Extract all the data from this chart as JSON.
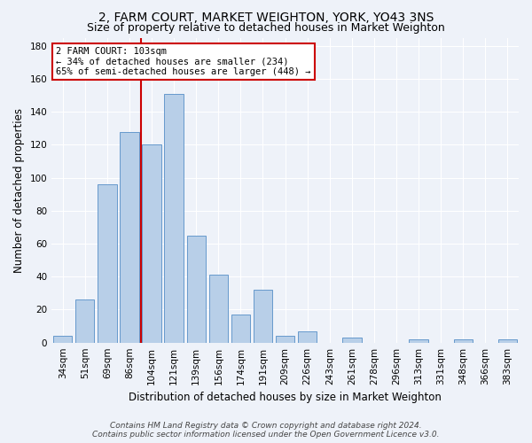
{
  "title_line1": "2, FARM COURT, MARKET WEIGHTON, YORK, YO43 3NS",
  "title_line2": "Size of property relative to detached houses in Market Weighton",
  "xlabel": "Distribution of detached houses by size in Market Weighton",
  "ylabel": "Number of detached properties",
  "categories": [
    "34sqm",
    "51sqm",
    "69sqm",
    "86sqm",
    "104sqm",
    "121sqm",
    "139sqm",
    "156sqm",
    "174sqm",
    "191sqm",
    "209sqm",
    "226sqm",
    "243sqm",
    "261sqm",
    "278sqm",
    "296sqm",
    "313sqm",
    "331sqm",
    "348sqm",
    "366sqm",
    "383sqm"
  ],
  "values": [
    4,
    26,
    96,
    128,
    120,
    151,
    65,
    41,
    17,
    32,
    4,
    7,
    0,
    3,
    0,
    0,
    2,
    0,
    2,
    0,
    2
  ],
  "bar_color": "#b8cfe8",
  "bar_edge_color": "#6699cc",
  "bar_width": 0.85,
  "ylim": [
    0,
    185
  ],
  "yticks": [
    0,
    20,
    40,
    60,
    80,
    100,
    120,
    140,
    160,
    180
  ],
  "vline_x_index": 4,
  "vline_color": "#cc0000",
  "annotation_text": "2 FARM COURT: 103sqm\n← 34% of detached houses are smaller (234)\n65% of semi-detached houses are larger (448) →",
  "annotation_box_color": "#ffffff",
  "annotation_box_edge": "#cc0000",
  "footer_line1": "Contains HM Land Registry data © Crown copyright and database right 2024.",
  "footer_line2": "Contains public sector information licensed under the Open Government Licence v3.0.",
  "background_color": "#eef2f9",
  "grid_color": "#ffffff",
  "title_fontsize": 10,
  "subtitle_fontsize": 9,
  "axis_label_fontsize": 8.5,
  "tick_fontsize": 7.5,
  "annotation_fontsize": 7.5,
  "footer_fontsize": 6.5
}
